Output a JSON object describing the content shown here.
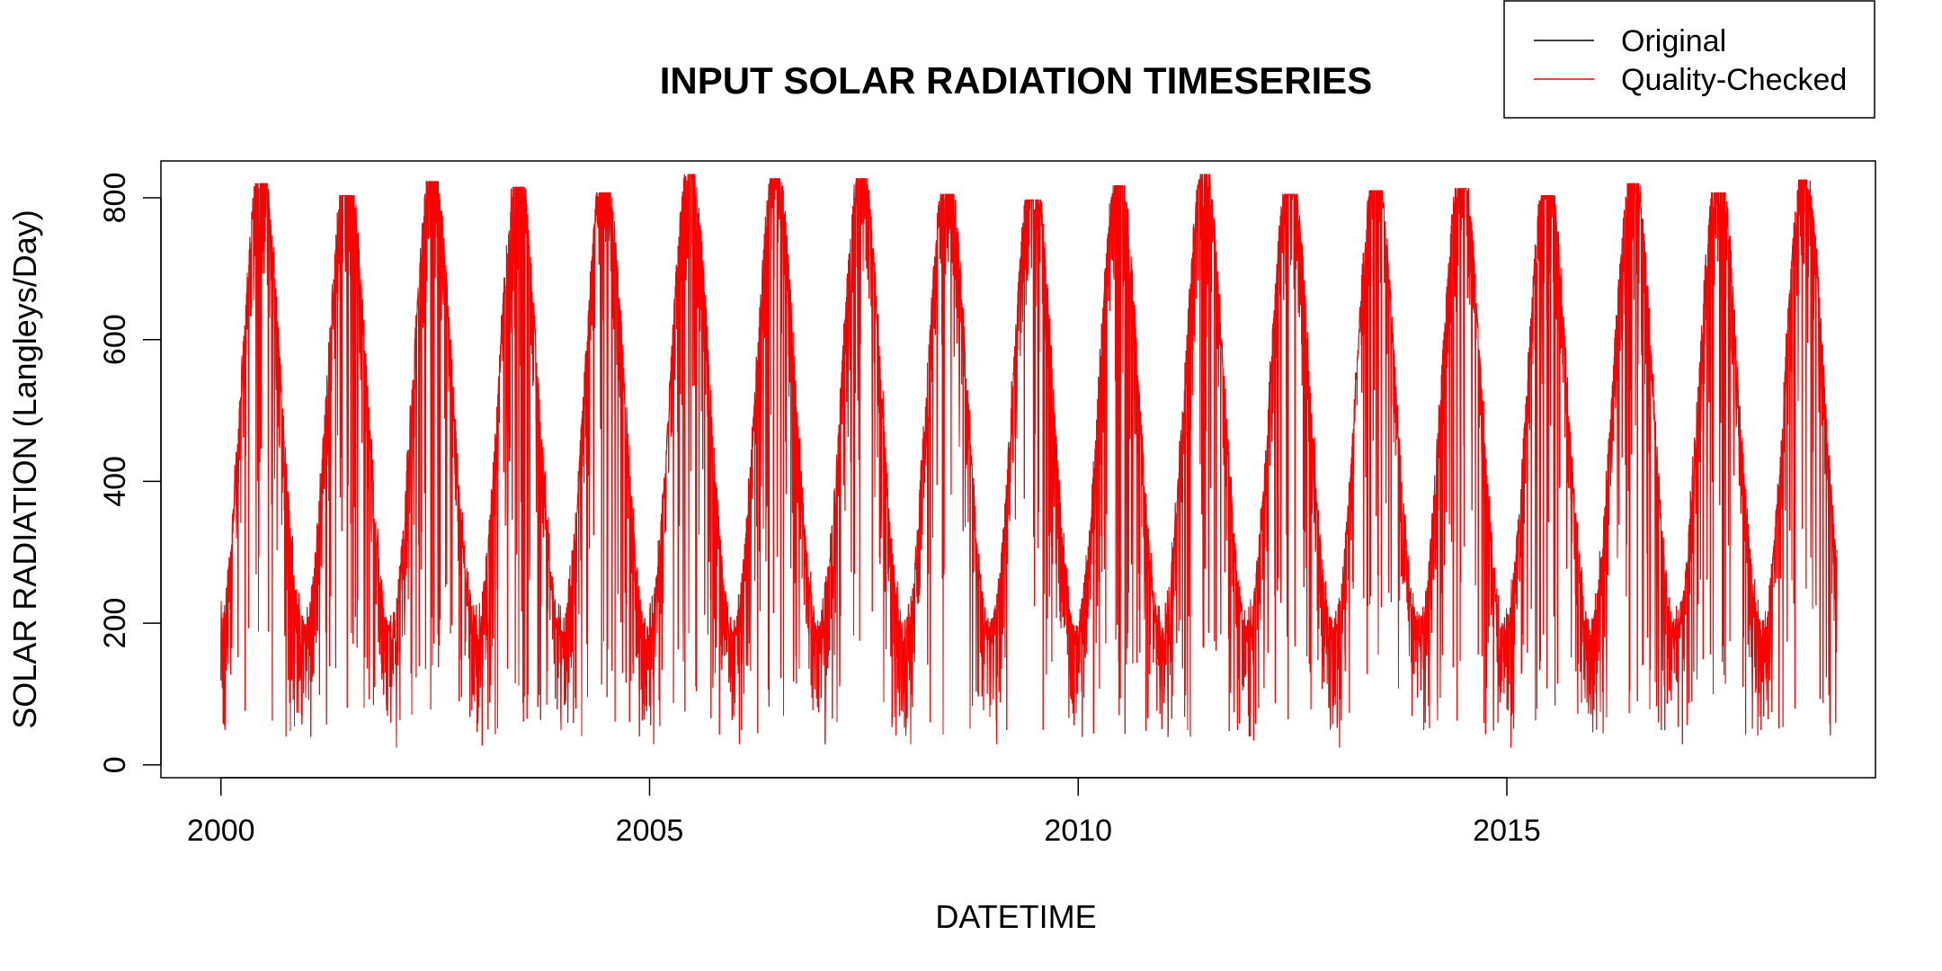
{
  "chart_data": {
    "type": "line",
    "title": "INPUT SOLAR RADIATION TIMESERIES",
    "xlabel": "DATETIME",
    "ylabel": "SOLAR RADIATION (Langleys/Day)",
    "xlim": [
      1999.3,
      2019.3
    ],
    "ylim": [
      -18,
      852
    ],
    "x_ticks": [
      2000,
      2005,
      2010,
      2015
    ],
    "y_ticks": [
      0,
      200,
      400,
      600,
      800
    ],
    "grid": false,
    "legend_position": "top-right",
    "time_range": {
      "start": 2000.0,
      "end": 2018.85
    },
    "series": [
      {
        "name": "Original",
        "color": "#000000",
        "seasonal_pattern": {
          "winter_min": 150,
          "summer_max": 800,
          "peak_month": "June"
        }
      },
      {
        "name": "Quality-Checked",
        "color": "#ff0000",
        "seasonal_pattern": {
          "winter_min": 150,
          "summer_max": 800,
          "peak_month": "June"
        }
      }
    ],
    "annual_peaks": [
      {
        "year": 2000,
        "value": 815
      },
      {
        "year": 2001,
        "value": 798
      },
      {
        "year": 2002,
        "value": 818
      },
      {
        "year": 2003,
        "value": 810
      },
      {
        "year": 2004,
        "value": 802
      },
      {
        "year": 2005,
        "value": 828
      },
      {
        "year": 2006,
        "value": 822
      },
      {
        "year": 2007,
        "value": 822
      },
      {
        "year": 2008,
        "value": 800
      },
      {
        "year": 2009,
        "value": 792
      },
      {
        "year": 2010,
        "value": 812
      },
      {
        "year": 2011,
        "value": 828
      },
      {
        "year": 2012,
        "value": 800
      },
      {
        "year": 2013,
        "value": 805
      },
      {
        "year": 2014,
        "value": 808
      },
      {
        "year": 2015,
        "value": 798
      },
      {
        "year": 2016,
        "value": 815
      },
      {
        "year": 2017,
        "value": 802
      },
      {
        "year": 2018,
        "value": 820
      }
    ],
    "annual_minima": [
      {
        "year": 2000,
        "value": 50
      },
      {
        "year": 2001,
        "value": 40
      },
      {
        "year": 2002,
        "value": 25
      },
      {
        "year": 2003,
        "value": 28
      },
      {
        "year": 2004,
        "value": 60
      },
      {
        "year": 2005,
        "value": 30
      },
      {
        "year": 2006,
        "value": 30
      },
      {
        "year": 2007,
        "value": 30
      },
      {
        "year": 2008,
        "value": 30
      },
      {
        "year": 2009,
        "value": 30
      },
      {
        "year": 2010,
        "value": 40
      },
      {
        "year": 2011,
        "value": 40
      },
      {
        "year": 2012,
        "value": 35
      },
      {
        "year": 2013,
        "value": 25
      },
      {
        "year": 2014,
        "value": 60
      },
      {
        "year": 2015,
        "value": 25
      },
      {
        "year": 2016,
        "value": 50
      },
      {
        "year": 2017,
        "value": 30
      },
      {
        "year": 2018,
        "value": 65
      }
    ]
  }
}
